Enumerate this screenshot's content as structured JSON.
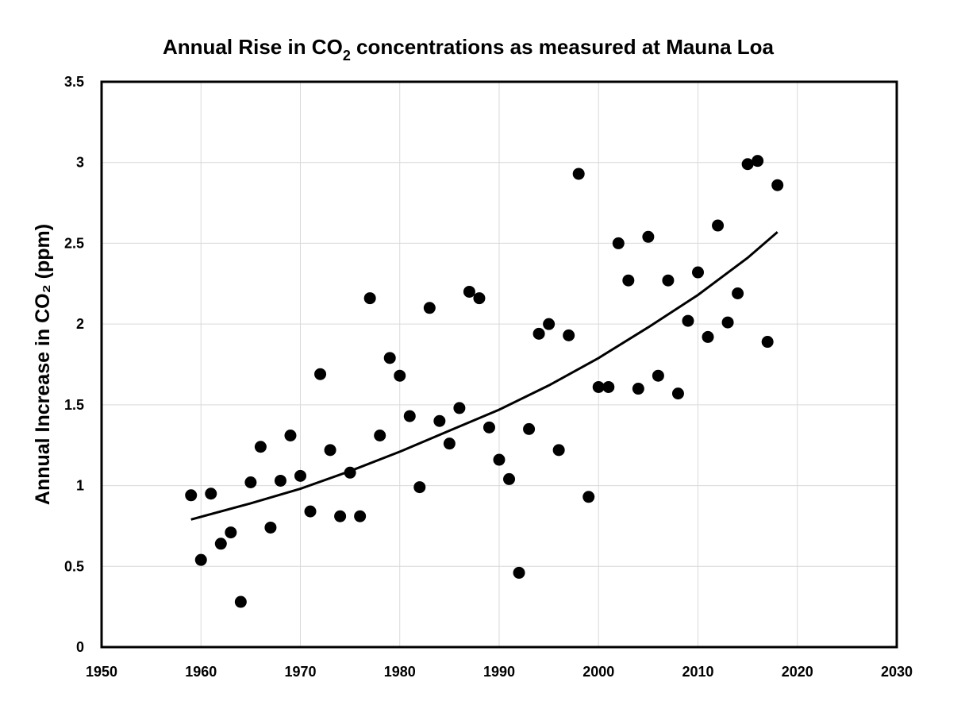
{
  "chart_data": {
    "type": "scatter",
    "title": "Annual Rise in CO2 concentrations as measured at Mauna Loa",
    "title_parts": {
      "pre": "Annual Rise in CO",
      "sub": "2",
      "post": " concentrations as measured at Mauna Loa"
    },
    "xlabel": "",
    "ylabel": "Annual Increase in CO₂ (ppm)",
    "xlim": [
      1950,
      2030
    ],
    "ylim": [
      0,
      3.5
    ],
    "x_ticks": [
      1950,
      1960,
      1970,
      1980,
      1990,
      2000,
      2010,
      2020,
      2030
    ],
    "y_ticks": [
      0,
      0.5,
      1,
      1.5,
      2,
      2.5,
      3,
      3.5
    ],
    "y_tick_labels": [
      "0",
      "0.5",
      "1",
      "1.5",
      "2",
      "2.5",
      "3",
      "3.5"
    ],
    "x_tick_labels": [
      "1950",
      "1960",
      "1970",
      "1980",
      "1990",
      "2000",
      "2010",
      "2020",
      "2030"
    ],
    "grid": true,
    "colors": {
      "points": "#000000",
      "trend": "#000000",
      "grid": "#d9d9d9",
      "axis": "#000000"
    },
    "points": [
      {
        "x": 1959,
        "y": 0.94
      },
      {
        "x": 1960,
        "y": 0.54
      },
      {
        "x": 1961,
        "y": 0.95
      },
      {
        "x": 1962,
        "y": 0.64
      },
      {
        "x": 1963,
        "y": 0.71
      },
      {
        "x": 1964,
        "y": 0.28
      },
      {
        "x": 1965,
        "y": 1.02
      },
      {
        "x": 1966,
        "y": 1.24
      },
      {
        "x": 1967,
        "y": 0.74
      },
      {
        "x": 1968,
        "y": 1.03
      },
      {
        "x": 1969,
        "y": 1.31
      },
      {
        "x": 1970,
        "y": 1.06
      },
      {
        "x": 1971,
        "y": 0.84
      },
      {
        "x": 1972,
        "y": 1.69
      },
      {
        "x": 1973,
        "y": 1.22
      },
      {
        "x": 1974,
        "y": 0.81
      },
      {
        "x": 1975,
        "y": 1.08
      },
      {
        "x": 1976,
        "y": 0.81
      },
      {
        "x": 1977,
        "y": 2.16
      },
      {
        "x": 1978,
        "y": 1.31
      },
      {
        "x": 1979,
        "y": 1.79
      },
      {
        "x": 1980,
        "y": 1.68
      },
      {
        "x": 1981,
        "y": 1.43
      },
      {
        "x": 1982,
        "y": 0.99
      },
      {
        "x": 1983,
        "y": 2.1
      },
      {
        "x": 1984,
        "y": 1.4
      },
      {
        "x": 1985,
        "y": 1.26
      },
      {
        "x": 1986,
        "y": 1.48
      },
      {
        "x": 1987,
        "y": 2.2
      },
      {
        "x": 1988,
        "y": 2.16
      },
      {
        "x": 1989,
        "y": 1.36
      },
      {
        "x": 1990,
        "y": 1.16
      },
      {
        "x": 1991,
        "y": 1.04
      },
      {
        "x": 1992,
        "y": 0.46
      },
      {
        "x": 1993,
        "y": 1.35
      },
      {
        "x": 1994,
        "y": 1.94
      },
      {
        "x": 1995,
        "y": 2.0
      },
      {
        "x": 1996,
        "y": 1.22
      },
      {
        "x": 1997,
        "y": 1.93
      },
      {
        "x": 1998,
        "y": 2.93
      },
      {
        "x": 1999,
        "y": 0.93
      },
      {
        "x": 2000,
        "y": 1.61
      },
      {
        "x": 2001,
        "y": 1.61
      },
      {
        "x": 2002,
        "y": 2.5
      },
      {
        "x": 2003,
        "y": 2.27
      },
      {
        "x": 2004,
        "y": 1.6
      },
      {
        "x": 2005,
        "y": 2.54
      },
      {
        "x": 2006,
        "y": 1.68
      },
      {
        "x": 2007,
        "y": 2.27
      },
      {
        "x": 2008,
        "y": 1.57
      },
      {
        "x": 2009,
        "y": 2.02
      },
      {
        "x": 2010,
        "y": 2.32
      },
      {
        "x": 2011,
        "y": 1.92
      },
      {
        "x": 2012,
        "y": 2.61
      },
      {
        "x": 2013,
        "y": 2.01
      },
      {
        "x": 2014,
        "y": 2.19
      },
      {
        "x": 2015,
        "y": 2.99
      },
      {
        "x": 2016,
        "y": 3.01
      },
      {
        "x": 2017,
        "y": 1.89
      },
      {
        "x": 2018,
        "y": 2.86
      }
    ],
    "trendline": {
      "type": "exponential",
      "x_range": [
        1959,
        2018
      ],
      "points": [
        {
          "x": 1959,
          "y": 0.79
        },
        {
          "x": 1965,
          "y": 0.89
        },
        {
          "x": 1970,
          "y": 0.98
        },
        {
          "x": 1975,
          "y": 1.09
        },
        {
          "x": 1980,
          "y": 1.21
        },
        {
          "x": 1985,
          "y": 1.34
        },
        {
          "x": 1990,
          "y": 1.47
        },
        {
          "x": 1995,
          "y": 1.62
        },
        {
          "x": 2000,
          "y": 1.79
        },
        {
          "x": 2005,
          "y": 1.98
        },
        {
          "x": 2010,
          "y": 2.18
        },
        {
          "x": 2015,
          "y": 2.41
        },
        {
          "x": 2018,
          "y": 2.57
        }
      ]
    }
  }
}
